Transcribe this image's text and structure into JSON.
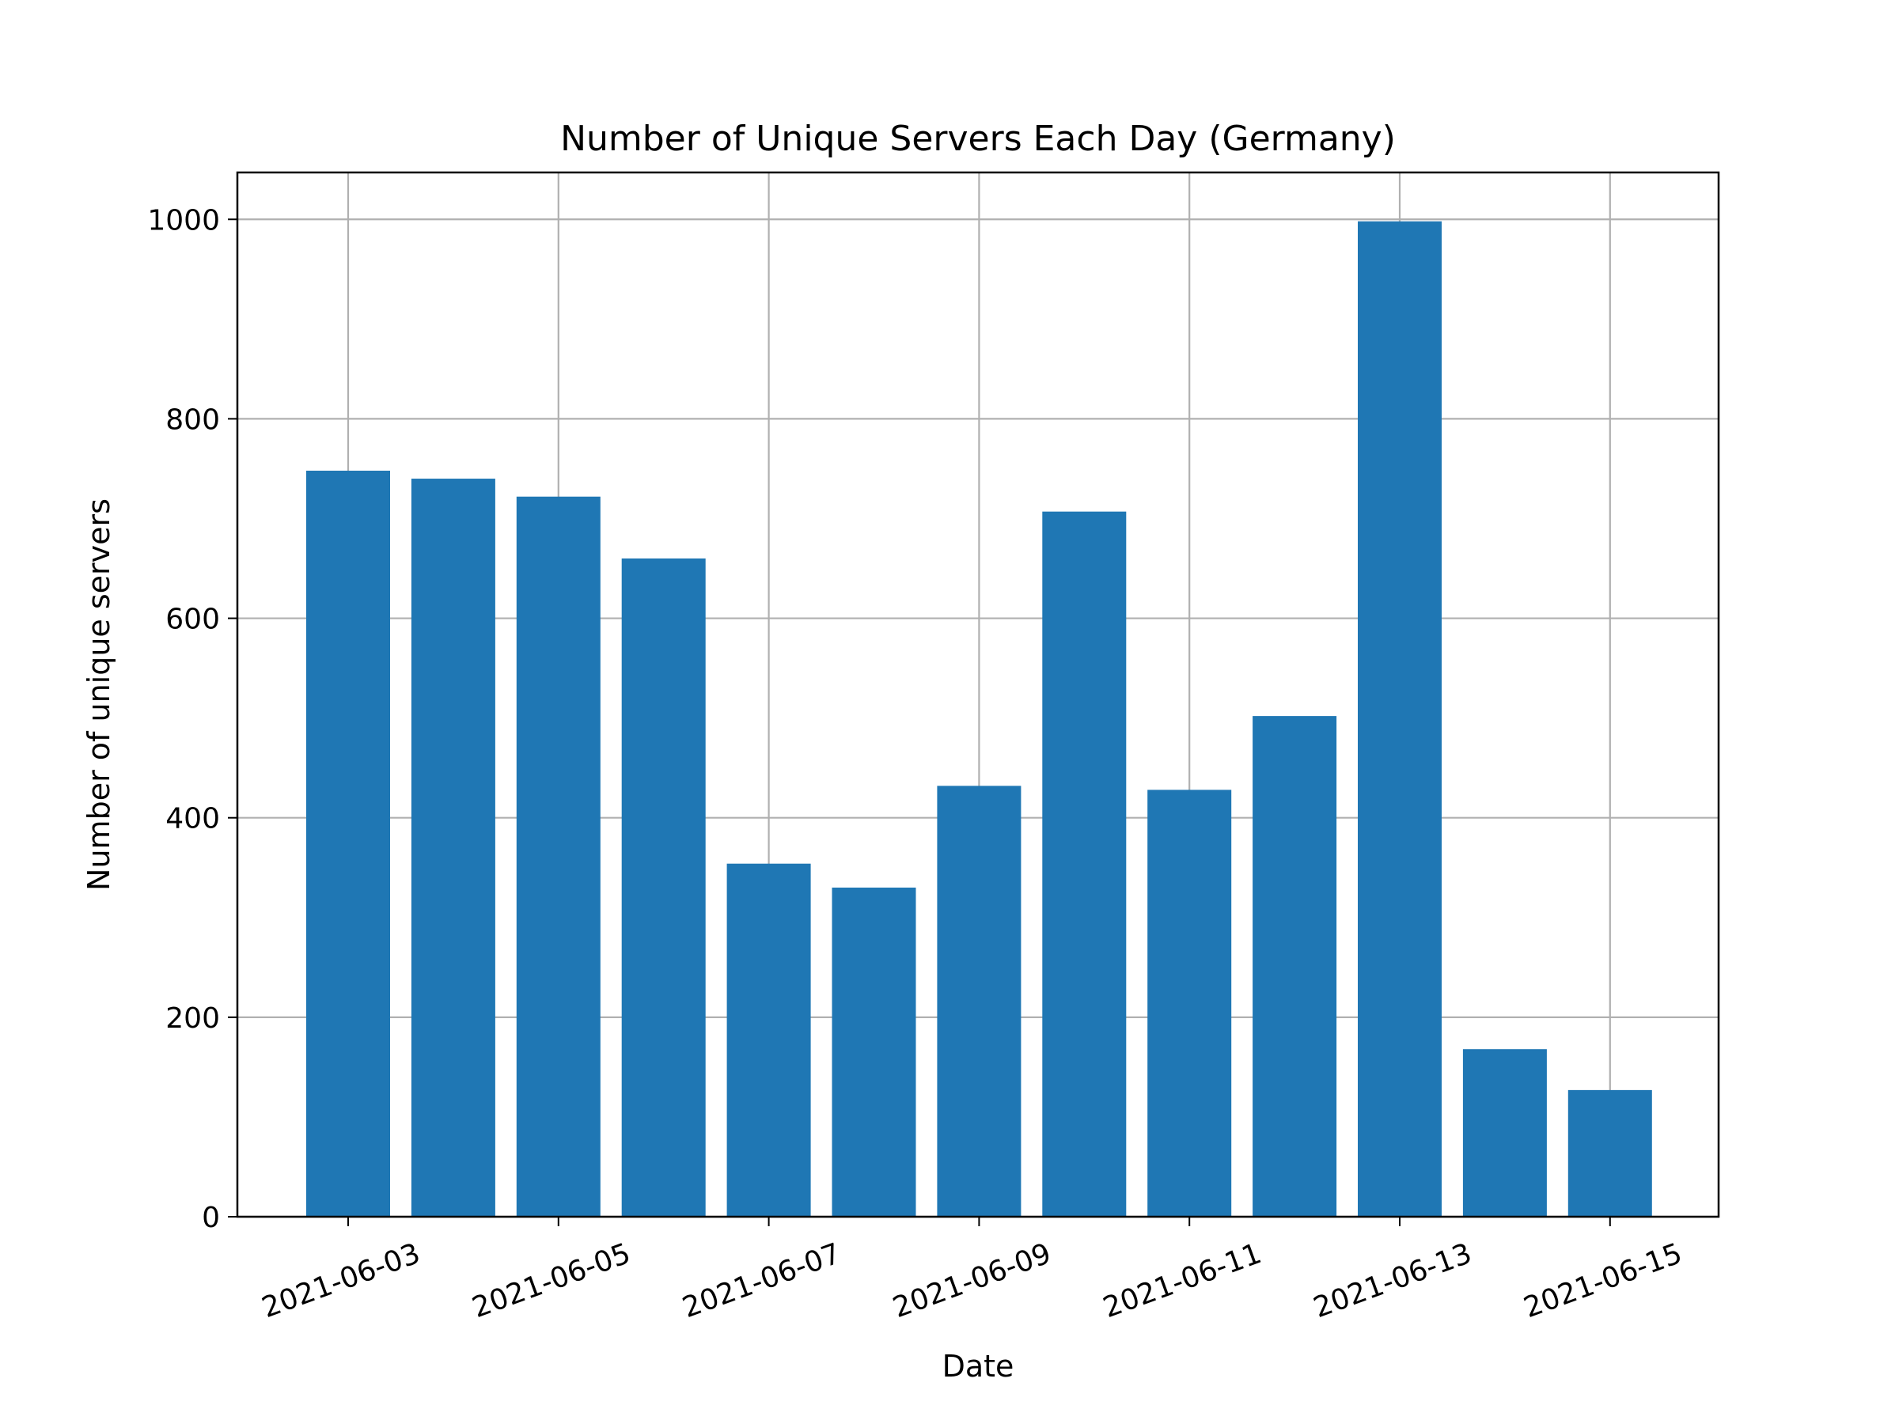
{
  "chart_data": {
    "type": "bar",
    "title": "Number of Unique Servers Each Day (Germany)",
    "xlabel": "Date",
    "ylabel": "Number of unique servers",
    "x": [
      "2021-06-03",
      "2021-06-04",
      "2021-06-05",
      "2021-06-06",
      "2021-06-07",
      "2021-06-08",
      "2021-06-09",
      "2021-06-10",
      "2021-06-11",
      "2021-06-12",
      "2021-06-13",
      "2021-06-14",
      "2021-06-15"
    ],
    "values": [
      748,
      740,
      722,
      660,
      354,
      330,
      432,
      707,
      428,
      502,
      998,
      168,
      127
    ],
    "xticks": [
      "2021-06-03",
      "2021-06-05",
      "2021-06-07",
      "2021-06-09",
      "2021-06-11",
      "2021-06-13",
      "2021-06-15"
    ],
    "yticks": [
      "0",
      "200",
      "400",
      "600",
      "800",
      "1000"
    ],
    "ylim": [
      0,
      1047
    ],
    "grid": true,
    "bar_color": "#1f77b4"
  }
}
